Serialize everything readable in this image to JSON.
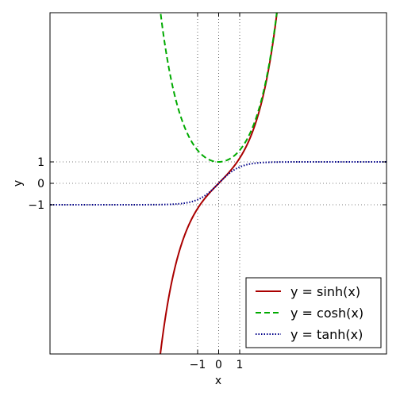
{
  "chart_data": {
    "type": "line",
    "title": "",
    "xlabel": "x",
    "ylabel": "y",
    "xlim": [
      -8,
      8
    ],
    "ylim": [
      -8,
      8
    ],
    "x_tick_values": [
      -1,
      0,
      1
    ],
    "x_tick_labels": [
      "−1",
      "0",
      "1"
    ],
    "y_tick_values": [
      1,
      0,
      -1
    ],
    "y_tick_labels": [
      "1",
      "0",
      "−1"
    ],
    "grid": "dotted gray lines at x = -1, 0, 1 and y = -1, 0, 1",
    "legend_position": "lower-right",
    "series": [
      {
        "name": "y = sinh(x)",
        "function": "sinh",
        "color": "#aa0000",
        "line_style": "solid",
        "x": [
          -2.8,
          -2.5,
          -2.0,
          -1.5,
          -1.0,
          -0.5,
          0,
          0.5,
          1.0,
          1.5,
          2.0,
          2.5,
          2.8
        ],
        "y": [
          -8.19,
          -6.05,
          -3.63,
          -2.13,
          -1.18,
          -0.52,
          0,
          0.52,
          1.18,
          2.13,
          3.63,
          6.05,
          8.19
        ]
      },
      {
        "name": "y = cosh(x)",
        "function": "cosh",
        "color": "#00aa00",
        "line_style": "dashed",
        "x": [
          -2.8,
          -2.5,
          -2.0,
          -1.5,
          -1.0,
          -0.5,
          0,
          0.5,
          1.0,
          1.5,
          2.0,
          2.5,
          2.8
        ],
        "y": [
          8.25,
          6.13,
          3.76,
          2.35,
          1.54,
          1.13,
          1.0,
          1.13,
          1.54,
          2.35,
          3.76,
          6.13,
          8.25
        ]
      },
      {
        "name": "y = tanh(x)",
        "function": "tanh",
        "color": "#000088",
        "line_style": "dotted",
        "x": [
          -8,
          -6,
          -4,
          -3,
          -2,
          -1,
          -0.5,
          0,
          0.5,
          1,
          2,
          3,
          4,
          6,
          8
        ],
        "y": [
          -1.0,
          -1.0,
          -0.999,
          -0.995,
          -0.964,
          -0.762,
          -0.462,
          0,
          0.462,
          0.762,
          0.964,
          0.995,
          0.999,
          1.0,
          1.0
        ]
      }
    ]
  }
}
